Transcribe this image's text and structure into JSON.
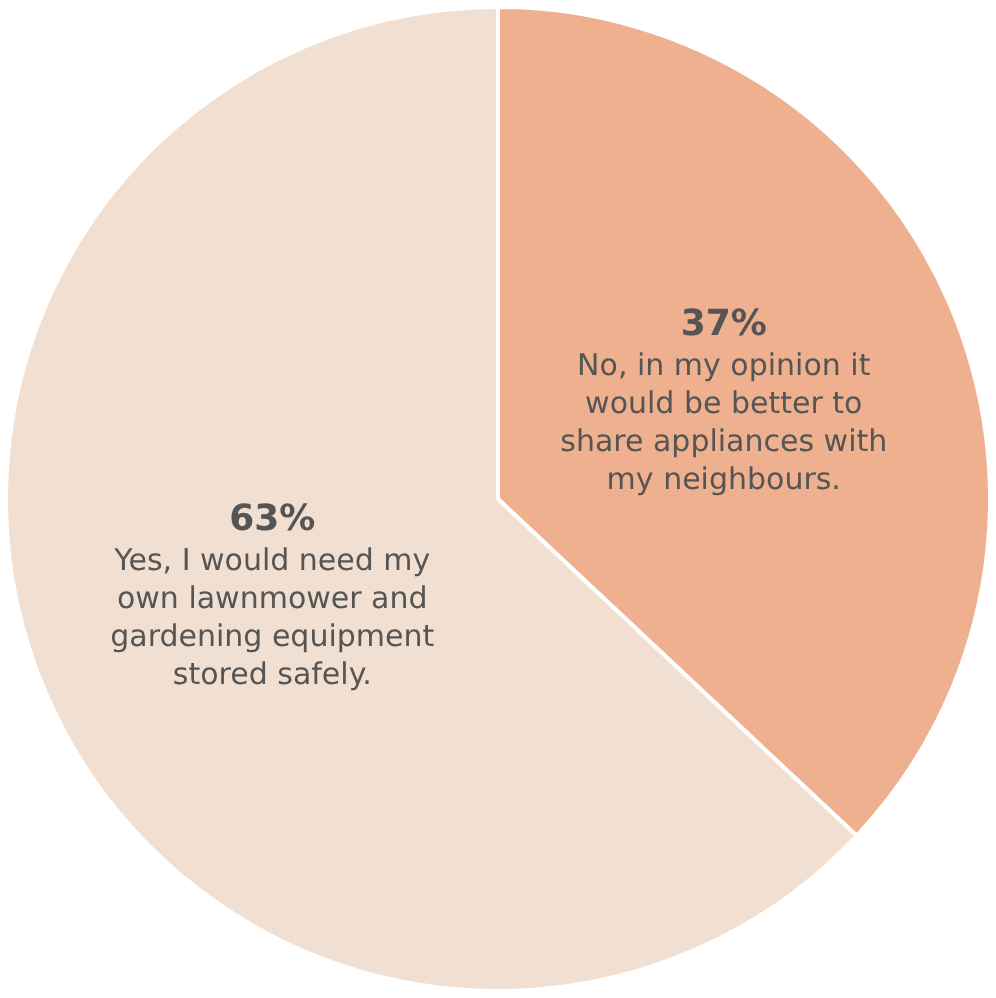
{
  "chart_data": {
    "type": "pie",
    "categories": [
      "No, in my opinion it would be better to share appliances with my neighbours.",
      "Yes, I would need my own lawnmower and gardening equipment stored safely."
    ],
    "values": [
      37,
      63
    ],
    "value_labels": [
      "37%",
      "63%"
    ],
    "colors": [
      "#eeb08f",
      "#f1e0d1"
    ],
    "legend": false
  }
}
